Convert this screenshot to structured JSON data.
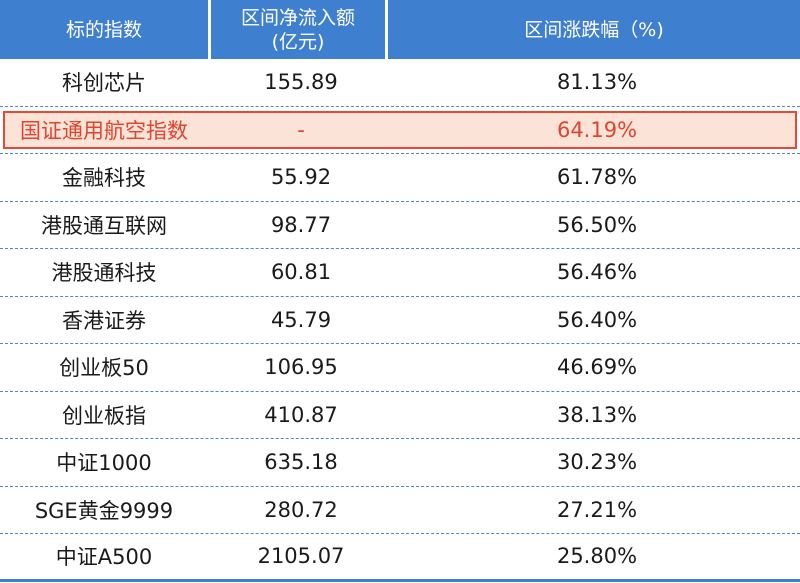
{
  "table": {
    "headers": {
      "col1": "标的指数",
      "col2_line1": "区间净流入额",
      "col2_line2": "(亿元)",
      "col3": "区间涨跌幅（%)"
    },
    "highlight_color": "#e0442f",
    "header_color": "#3f7fd0",
    "rows": [
      {
        "name": "科创芯片",
        "inflow": "155.89",
        "change": "81.13%"
      },
      {
        "name": "国证通用航空指数",
        "inflow": "-",
        "change": "64.19%"
      },
      {
        "name": "金融科技",
        "inflow": "55.92",
        "change": "61.78%"
      },
      {
        "name": "港股通互联网",
        "inflow": "98.77",
        "change": "56.50%"
      },
      {
        "name": "港股通科技",
        "inflow": "60.81",
        "change": "56.46%"
      },
      {
        "name": "香港证券",
        "inflow": "45.79",
        "change": "56.40%"
      },
      {
        "name": "创业板50",
        "inflow": "106.95",
        "change": "46.69%"
      },
      {
        "name": "创业板指",
        "inflow": "410.87",
        "change": "38.13%"
      },
      {
        "name": "中证1000",
        "inflow": "635.18",
        "change": "30.23%"
      },
      {
        "name": "SGE黄金9999",
        "inflow": "280.72",
        "change": "27.21%"
      },
      {
        "name": "中证A500",
        "inflow": "2105.07",
        "change": "25.80%"
      }
    ]
  }
}
